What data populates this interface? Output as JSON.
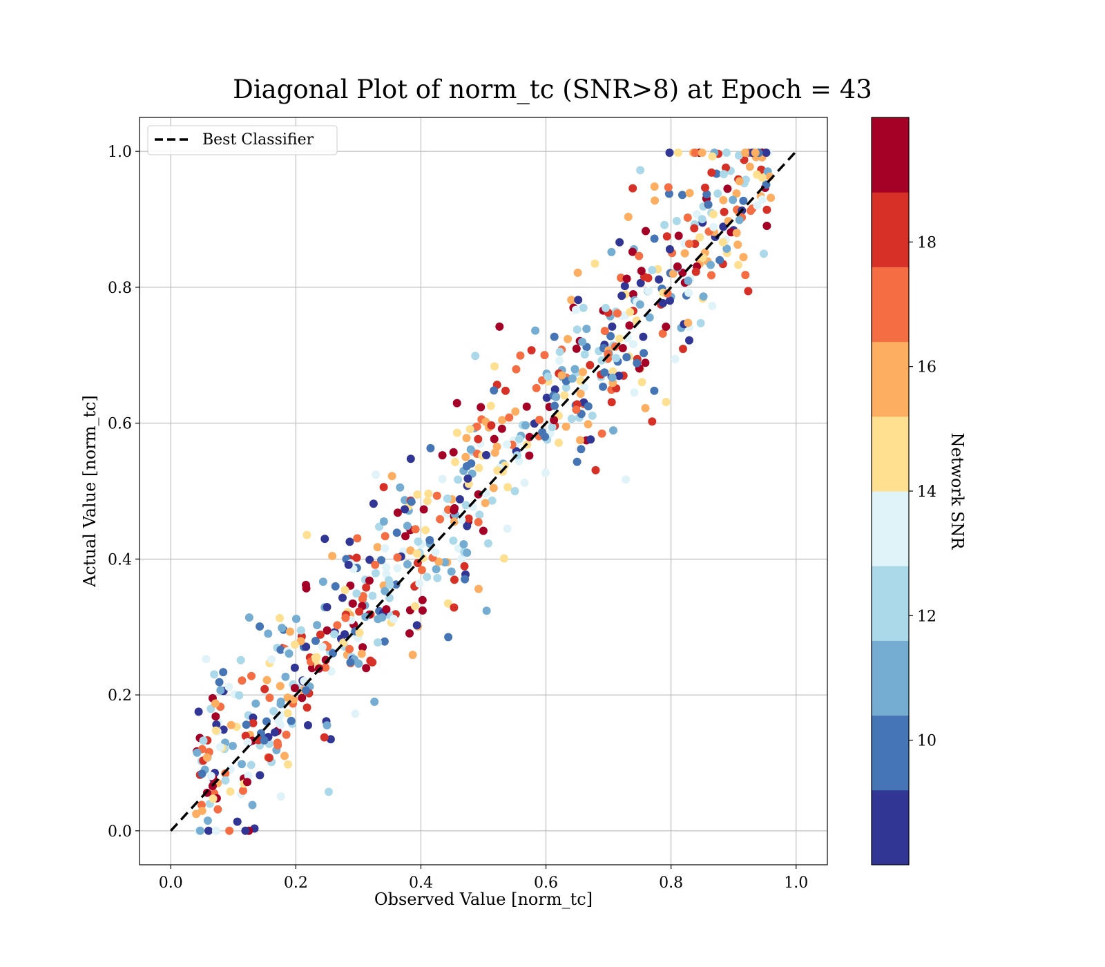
{
  "chart_data": {
    "type": "scatter",
    "title": "Diagonal Plot of norm_tc (SNR>8) at Epoch = 43",
    "xlabel": "Observed Value [norm_tc]",
    "ylabel": "Actual Value [norm_tc]",
    "xlim": [
      -0.05,
      1.05
    ],
    "ylim": [
      -0.05,
      1.05
    ],
    "xticks": [
      "0.0",
      "0.2",
      "0.4",
      "0.6",
      "0.8",
      "1.0"
    ],
    "yticks": [
      "0.0",
      "0.2",
      "0.4",
      "0.6",
      "0.8",
      "1.0"
    ],
    "grid": true,
    "legend": {
      "placement": "upper-left",
      "entries": [
        "Best Classifier"
      ]
    },
    "reference_line": {
      "name": "Best Classifier",
      "style": "dashed",
      "color": "#000000",
      "x": [
        0,
        1
      ],
      "y": [
        0,
        1
      ]
    },
    "colorbar": {
      "label": "Network SNR",
      "range": [
        8,
        20
      ],
      "ticks": [
        "10",
        "12",
        "14",
        "16",
        "18"
      ],
      "tick_values": [
        10,
        12,
        14,
        16,
        18
      ],
      "colormap": [
        "#313695",
        "#4575b4",
        "#74add1",
        "#abd9e9",
        "#e0f3f8",
        "#fee090",
        "#fdae61",
        "#f46d43",
        "#d73027",
        "#a50026"
      ]
    },
    "points_note": "~800 points scattered around the diagonal; each point [x, y, snr]",
    "points": []
  }
}
